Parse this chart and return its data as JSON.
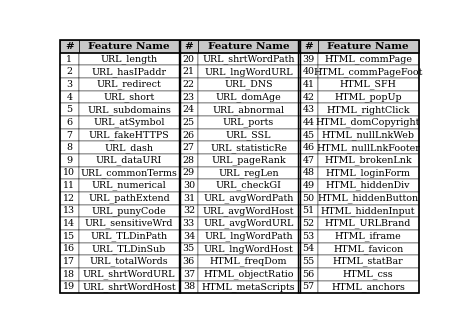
{
  "col1_nums": [
    "1",
    "2",
    "3",
    "4",
    "5",
    "6",
    "7",
    "8",
    "9",
    "10",
    "11",
    "12",
    "13",
    "14",
    "15",
    "16",
    "17",
    "18",
    "19"
  ],
  "col1_names": [
    "URL_length",
    "URL_hasIPaddr",
    "URL_redirect",
    "URL_short",
    "URL_subdomains",
    "URL_atSymbol",
    "URL_fakeHTTPS",
    "URL_dash",
    "URL_dataURI",
    "URL_commonTerms",
    "URL_numerical",
    "URL_pathExtend",
    "URL_punyCode",
    "URL_sensitiveWrd",
    "URL_TLDinPath",
    "URL_TLDinSub",
    "URL_totalWords",
    "URL_shrtWordURL",
    "URL_shrtWordHost"
  ],
  "col2_nums": [
    "20",
    "21",
    "22",
    "23",
    "24",
    "25",
    "26",
    "27",
    "28",
    "29",
    "30",
    "31",
    "32",
    "33",
    "34",
    "35",
    "36",
    "37",
    "38"
  ],
  "col2_names": [
    "URL_shrtWordPath",
    "URL_lngWordURL",
    "URL_DNS",
    "URL_domAge",
    "URL_abnormal",
    "URL_ports",
    "URL_SSL",
    "URL_statisticRe",
    "URL_pageRank",
    "URL_regLen",
    "URL_checkGI",
    "URL_avgWordPath",
    "URL_avgWordHost",
    "URL_avgWordURL",
    "URL_lngWordPath",
    "URL_lngWordHost",
    "HTML_freqDom",
    "HTML_objectRatio",
    "HTML_metaScripts"
  ],
  "col3_nums": [
    "39",
    "40",
    "41",
    "42",
    "43",
    "44",
    "45",
    "46",
    "47",
    "48",
    "49",
    "50",
    "51",
    "52",
    "53",
    "54",
    "55",
    "56",
    "57"
  ],
  "col3_names": [
    "HTML_commPage",
    "HTML_commPageFoot",
    "HTML_SFH",
    "HTML_popUp",
    "HTML_rightClick",
    "HTML_domCopyright",
    "HTML_nullLnkWeb",
    "HTML_nullLnkFooter",
    "HTML_brokenLnk",
    "HTML_loginForm",
    "HTML_hiddenDiv",
    "HTML_hiddenButton",
    "HTML_hiddenInput",
    "HTML_URLBrand",
    "HTML_iframe",
    "HTML_favicon",
    "HTML_statBar",
    "HTML_css",
    "HTML_anchors"
  ],
  "header_num": "#",
  "header_name": "Feature Name",
  "figsize": [
    4.66,
    3.3
  ],
  "dpi": 100,
  "font_size": 6.8,
  "header_font_size": 7.5,
  "n_rows": 19,
  "header_bg": "#c8c8c8",
  "cell_bg": "#ffffff"
}
